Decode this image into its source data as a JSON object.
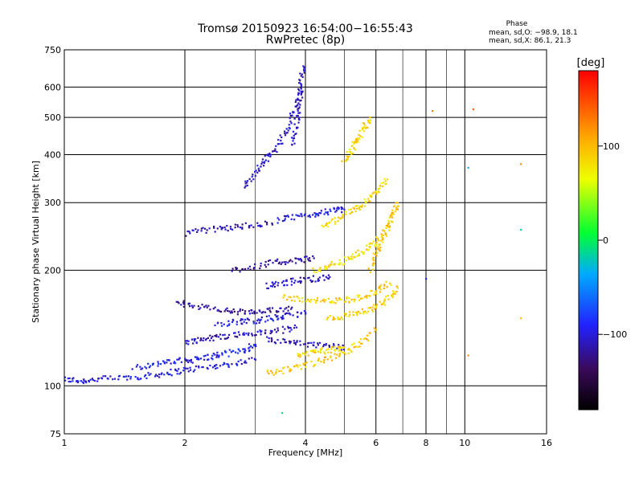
{
  "chart_data": {
    "type": "scatter",
    "title": "Tromsø 20150923 16:54:00−16:55:43",
    "subtitle": "RwPretec (8p)",
    "xlabel": "Frequency [MHz]",
    "ylabel": "Stationary phase Virtual Height [km]",
    "x_scale": "log",
    "y_scale": "log",
    "xlim": [
      1,
      16
    ],
    "ylim": [
      75,
      750
    ],
    "x_ticks": [
      1,
      2,
      4,
      6,
      8,
      10,
      16
    ],
    "y_ticks": [
      75,
      100,
      200,
      300,
      400,
      500,
      600,
      750
    ],
    "x_minor_gridlines": [
      3,
      5,
      7,
      9
    ],
    "grid": true,
    "phase_stats": {
      "title": "Phase",
      "o_line": "mean, sd,O: −98.9, 18.1",
      "x_line": "mean, sd,X:  86.1, 21.3"
    },
    "colorbar": {
      "label": "[deg]",
      "range": [
        -180,
        180
      ],
      "ticks": [
        "100",
        "0",
        "−100"
      ],
      "tick_values": [
        100,
        0,
        -100
      ]
    },
    "series": [
      {
        "name": "",
        "traces": [
          {
            "x": [
              1.0,
              1.1,
              1.2,
              1.4,
              1.6,
              1.8,
              2.0,
              2.3,
              2.6,
              3.0
            ],
            "y": [
              104,
              103,
              104,
              105,
              106,
              108,
              110,
              112,
              114,
              117
            ],
            "phase": -100
          },
          {
            "x": [
              1.5,
              1.7,
              1.9,
              2.1,
              2.3,
              2.5,
              2.8,
              3.0
            ],
            "y": [
              112,
              114,
              116,
              117,
              119,
              121,
              124,
              128
            ],
            "phase": -95
          },
          {
            "x": [
              2.0,
              2.2,
              2.4,
              2.7,
              3.0,
              3.4,
              3.8
            ],
            "y": [
              130,
              132,
              134,
              136,
              137,
              139,
              142
            ],
            "phase": -110
          },
          {
            "x": [
              1.9,
              2.1,
              2.4,
              2.7,
              3.0,
              3.3,
              3.7
            ],
            "y": [
              165,
              162,
              158,
              156,
              155,
              157,
              160
            ],
            "phase": -120
          },
          {
            "x": [
              2.4,
              2.7,
              3.0,
              3.3,
              3.6,
              4.0
            ],
            "y": [
              145,
              147,
              148,
              150,
              152,
              155
            ],
            "phase": -100
          },
          {
            "x": [
              2.0,
              2.3,
              2.6,
              2.9,
              3.3
            ],
            "y": [
              250,
              255,
              258,
              262,
              265
            ],
            "phase": -115
          },
          {
            "x": [
              2.8,
              3.0,
              3.2,
              3.4,
              3.6,
              3.8,
              3.9
            ],
            "y": [
              330,
              360,
              390,
              420,
              470,
              530,
              600
            ],
            "phase": -105
          },
          {
            "x": [
              3.7,
              3.8,
              3.85,
              3.9,
              3.95
            ],
            "y": [
              420,
              480,
              540,
              610,
              680
            ],
            "phase": -110
          },
          {
            "x": [
              2.6,
              3.0,
              3.4,
              3.8,
              4.2
            ],
            "y": [
              200,
              205,
              210,
              212,
              215
            ],
            "phase": -120
          },
          {
            "x": [
              3.2,
              3.5,
              3.8,
              4.2,
              4.6
            ],
            "y": [
              182,
              185,
              188,
              190,
              192
            ],
            "phase": -110
          },
          {
            "x": [
              3.4,
              3.8,
              4.2,
              4.6,
              5.0
            ],
            "y": [
              270,
              275,
              280,
              285,
              288
            ],
            "phase": -100
          },
          {
            "x": [
              3.2,
              3.6,
              4.0,
              4.5,
              5.0
            ],
            "y": [
              132,
              130,
              128,
              127,
              126
            ],
            "phase": -110
          }
        ]
      },
      {
        "name": "",
        "traces": [
          {
            "x": [
              3.2,
              3.6,
              4.0,
              4.5,
              5.0,
              5.5,
              6.0
            ],
            "y": [
              108,
              110,
              113,
              117,
              122,
              130,
              140
            ],
            "phase": 95
          },
          {
            "x": [
              3.5,
              4.0,
              4.5,
              5.0,
              5.5,
              6.0,
              6.5
            ],
            "y": [
              170,
              168,
              166,
              167,
              170,
              176,
              185
            ],
            "phase": 90
          },
          {
            "x": [
              4.5,
              5.0,
              5.5,
              6.0,
              6.4,
              6.8
            ],
            "y": [
              150,
              152,
              155,
              160,
              168,
              180
            ],
            "phase": 88
          },
          {
            "x": [
              4.2,
              4.6,
              5.0,
              5.4,
              5.8,
              6.2
            ],
            "y": [
              200,
              205,
              212,
              220,
              230,
              245
            ],
            "phase": 80
          },
          {
            "x": [
              4.4,
              4.8,
              5.2,
              5.6,
              6.0,
              6.4
            ],
            "y": [
              260,
              270,
              285,
              300,
              320,
              345
            ],
            "phase": 85
          },
          {
            "x": [
              5.0,
              5.2,
              5.4,
              5.6,
              5.8
            ],
            "y": [
              380,
              410,
              440,
              470,
              500
            ],
            "phase": 90
          },
          {
            "x": [
              5.8,
              6.0,
              6.2,
              6.4,
              6.6,
              6.8
            ],
            "y": [
              200,
              220,
              240,
              260,
              280,
              300
            ],
            "phase": 95
          },
          {
            "x": [
              3.8,
              4.2,
              4.6,
              5.0
            ],
            "y": [
              120,
              122,
              124,
              126
            ],
            "phase": 85
          }
        ]
      },
      {
        "name": "",
        "points": [
          {
            "x": 8.3,
            "y": 520,
            "phase": 130
          },
          {
            "x": 10.5,
            "y": 525,
            "phase": 140
          },
          {
            "x": 10.2,
            "y": 370,
            "phase": -40
          },
          {
            "x": 13.8,
            "y": 255,
            "phase": -10
          },
          {
            "x": 13.8,
            "y": 378,
            "phase": 120
          },
          {
            "x": 13.8,
            "y": 150,
            "phase": 100
          },
          {
            "x": 10.2,
            "y": 120,
            "phase": 120
          },
          {
            "x": 3.5,
            "y": 85,
            "phase": -10
          },
          {
            "x": 8.0,
            "y": 190,
            "phase": -90
          }
        ]
      }
    ]
  }
}
